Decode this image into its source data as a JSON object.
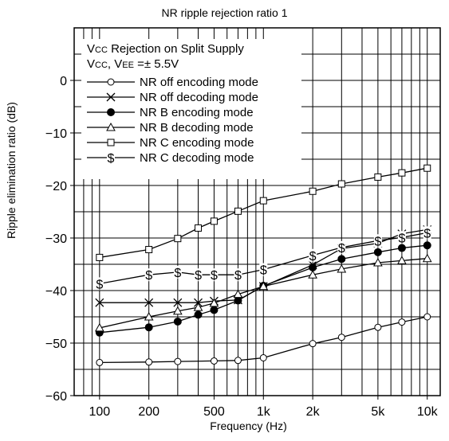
{
  "chart_data": {
    "type": "line",
    "title": "NR ripple rejection ratio 1",
    "xlabel": "Frequency (Hz)",
    "ylabel": "Ripple elimination ratio (dB)",
    "xscale": "log",
    "xlim": [
      70,
      12000
    ],
    "ylim": [
      -60,
      10
    ],
    "xticks": [
      100,
      200,
      500,
      1000,
      2000,
      5000,
      10000
    ],
    "xtick_labels": [
      "100",
      "200",
      "500",
      "1k",
      "2k",
      "5k",
      "10k"
    ],
    "yticks": [
      0,
      -10,
      -20,
      -30,
      -40,
      -50,
      -60
    ],
    "ytick_labels": [
      "0",
      "−10",
      "−20",
      "−30",
      "−40",
      "−50",
      "−60"
    ],
    "grid": true,
    "legend_position": "top-left",
    "annotation": {
      "line1_main": "V",
      "line1_sub": "CC",
      "line1_rest": " Rejection on Split Supply",
      "line2_main1": "V",
      "line2_sub1": "CC",
      "line2_mid": ", V",
      "line2_sub2": "EE",
      "line2_rest": " =± 5.5V"
    },
    "series": [
      {
        "name": "NR off encoding mode",
        "marker": "circle-open",
        "x": [
          100,
          200,
          300,
          500,
          700,
          1000,
          2000,
          3000,
          5000,
          7000,
          10000
        ],
        "y": [
          -53.7,
          -53.6,
          -53.5,
          -53.4,
          -53.3,
          -52.8,
          -50.1,
          -48.9,
          -47.0,
          -46.0,
          -45.0
        ]
      },
      {
        "name": "NR off decoding mode",
        "marker": "x",
        "x": [
          100,
          200,
          300,
          400,
          500,
          700,
          1000,
          2000,
          3000,
          5000,
          7000,
          10000
        ],
        "y": [
          -42.3,
          -42.3,
          -42.3,
          -42.3,
          -42.0,
          -41.8,
          -39.2,
          -35.1,
          -32.0,
          -31.0,
          -29.2,
          -28.4
        ]
      },
      {
        "name": "NR B encoding mode",
        "marker": "circle-filled",
        "x": [
          100,
          200,
          300,
          400,
          500,
          700,
          1000,
          2000,
          3000,
          5000,
          7000,
          10000
        ],
        "y": [
          -48.0,
          -47.0,
          -45.9,
          -44.6,
          -43.7,
          -41.9,
          -39.1,
          -35.6,
          -34.0,
          -32.7,
          -31.9,
          -31.4
        ]
      },
      {
        "name": "NR B decoding mode",
        "marker": "triangle-open",
        "x": [
          100,
          200,
          300,
          400,
          500,
          700,
          1000,
          2000,
          3000,
          5000,
          7000,
          10000
        ],
        "y": [
          -47.1,
          -45.0,
          -43.9,
          -43.2,
          -42.4,
          -40.7,
          -39.2,
          -37.0,
          -35.9,
          -34.7,
          -34.3,
          -33.9
        ]
      },
      {
        "name": "NR C encoding mode",
        "marker": "square-open",
        "x": [
          100,
          200,
          300,
          400,
          500,
          700,
          1000,
          2000,
          3000,
          5000,
          7000,
          10000
        ],
        "y": [
          -33.7,
          -32.2,
          -30.1,
          -28.1,
          -26.8,
          -24.9,
          -22.9,
          -21.1,
          -19.7,
          -18.4,
          -17.6,
          -16.7
        ]
      },
      {
        "name": "NR C decoding mode",
        "marker": "dollar",
        "x": [
          100,
          200,
          300,
          400,
          500,
          700,
          1000,
          2000,
          3000,
          5000,
          7000,
          10000
        ],
        "y": [
          -38.7,
          -37.0,
          -36.5,
          -37.0,
          -37.0,
          -37.0,
          -36.0,
          -33.3,
          -31.8,
          -30.5,
          -29.9,
          -29.0
        ]
      }
    ]
  }
}
